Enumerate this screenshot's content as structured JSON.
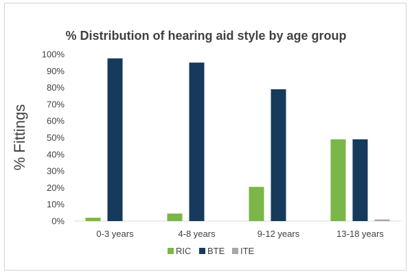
{
  "chart_data": {
    "type": "bar",
    "title": "% Distribution of hearing aid style by age group",
    "xlabel": "",
    "ylabel": "% Fittings",
    "ylim": [
      0,
      100
    ],
    "yticks": [
      "0%",
      "10%",
      "20%",
      "30%",
      "40%",
      "50%",
      "60%",
      "70%",
      "80%",
      "90%",
      "100%"
    ],
    "categories": [
      "0-3 years",
      "4-8 years",
      "9-12 years",
      "13-18 years"
    ],
    "series": [
      {
        "name": "RIC",
        "color": "#7ab648",
        "values": [
          2,
          4.5,
          20.5,
          49
        ]
      },
      {
        "name": "BTE",
        "color": "#163a5b",
        "values": [
          97.5,
          95,
          79,
          49
        ]
      },
      {
        "name": "ITE",
        "color": "#a6a6a6",
        "values": [
          0,
          0,
          0,
          1
        ]
      }
    ],
    "grid": false,
    "legend": "bottom"
  }
}
